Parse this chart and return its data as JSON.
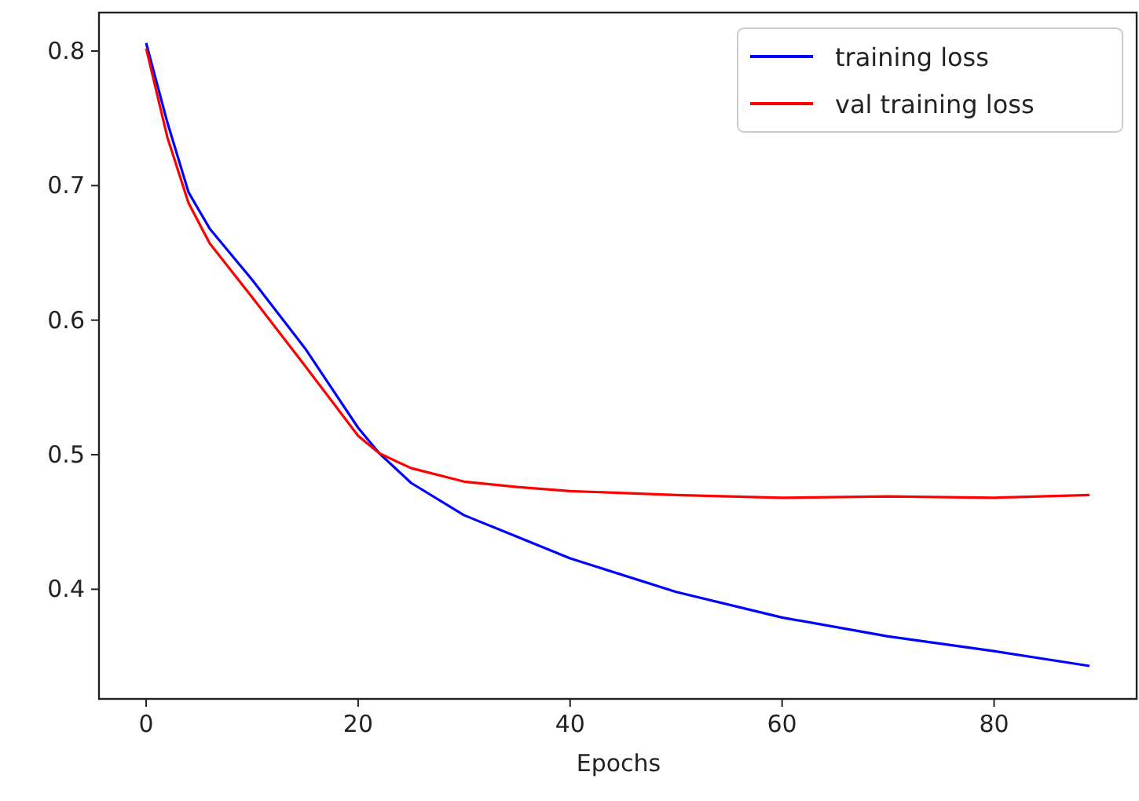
{
  "chart_data": {
    "type": "line",
    "xlabel": "Epochs",
    "xlim": [
      -4.45,
      93.45
    ],
    "xticks": [
      0,
      20,
      40,
      60,
      80
    ],
    "ylim": [
      0.3185,
      0.8286
    ],
    "yticks": [
      0.4,
      0.5,
      0.6,
      0.7,
      0.8
    ],
    "legend": "top right",
    "grid": false,
    "x": [
      0,
      2,
      4,
      6,
      10,
      15,
      20,
      22,
      25,
      30,
      35,
      40,
      50,
      60,
      70,
      80,
      89
    ],
    "series": [
      {
        "name": "training loss",
        "color": "#0000ff",
        "values": [
          0.806,
          0.747,
          0.695,
          0.668,
          0.63,
          0.579,
          0.52,
          0.501,
          0.479,
          0.455,
          0.439,
          0.423,
          0.398,
          0.379,
          0.365,
          0.354,
          0.343
        ]
      },
      {
        "name": "val training loss",
        "color": "#ff0000",
        "values": [
          0.802,
          0.736,
          0.687,
          0.657,
          0.617,
          0.566,
          0.514,
          0.501,
          0.49,
          0.48,
          0.476,
          0.473,
          0.47,
          0.468,
          0.469,
          0.468,
          0.47
        ]
      }
    ]
  }
}
